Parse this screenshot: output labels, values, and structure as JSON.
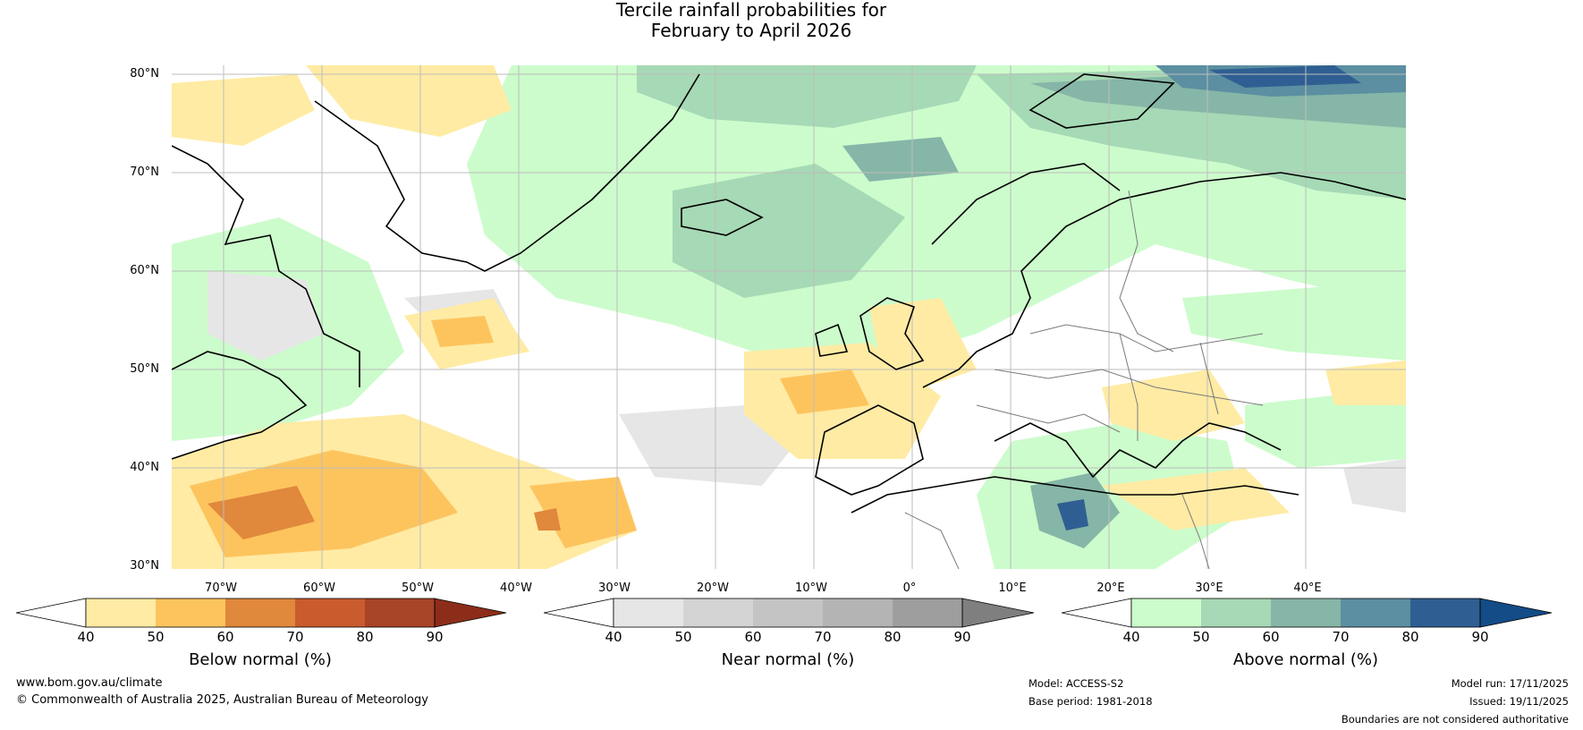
{
  "title": {
    "line1": "Tercile rainfall probabilities for",
    "line2": "February to April 2026"
  },
  "map": {
    "lat_labels": [
      "80°N",
      "70°N",
      "60°N",
      "50°N",
      "40°N",
      "30°N"
    ],
    "lon_labels": [
      "70°W",
      "60°W",
      "50°W",
      "40°W",
      "30°W",
      "20°W",
      "10°W",
      "0°",
      "10°E",
      "20°E",
      "30°E",
      "40°E"
    ],
    "colors": {
      "below": [
        "#ffeba4",
        "#fdc45e",
        "#e0883c",
        "#c95b2d",
        "#a84427",
        "#8c2d1a"
      ],
      "near": [
        "#e6e6e6",
        "#d4d4d4",
        "#c4c4c4",
        "#b4b4b4",
        "#9e9e9e",
        "#7f7f7f"
      ],
      "above": [
        "#ccfccc",
        "#a6d9b5",
        "#86b6a7",
        "#5b8fa1",
        "#2f5f92",
        "#134c87"
      ],
      "coast": "#000000",
      "border": "#7a7a7a",
      "grid": "#bdbdbd"
    }
  },
  "legends": {
    "below": {
      "title": "Below normal (%)",
      "ticks": [
        "40",
        "50",
        "60",
        "70",
        "80",
        "90"
      ]
    },
    "near": {
      "title": "Near normal (%)",
      "ticks": [
        "40",
        "50",
        "60",
        "70",
        "80",
        "90"
      ]
    },
    "above": {
      "title": "Above normal (%)",
      "ticks": [
        "40",
        "50",
        "60",
        "70",
        "80",
        "90"
      ]
    }
  },
  "footer": {
    "website": "www.bom.gov.au/climate",
    "copyright": "© Commonwealth of Australia 2025, Australian Bureau of Meteorology",
    "model": "Model: ACCESS-S2",
    "base_period": "Base period: 1981-2018",
    "model_run": "Model run: 17/11/2025",
    "issued": "Issued: 19/11/2025",
    "disclaimer": "Boundaries are not considered authoritative"
  }
}
